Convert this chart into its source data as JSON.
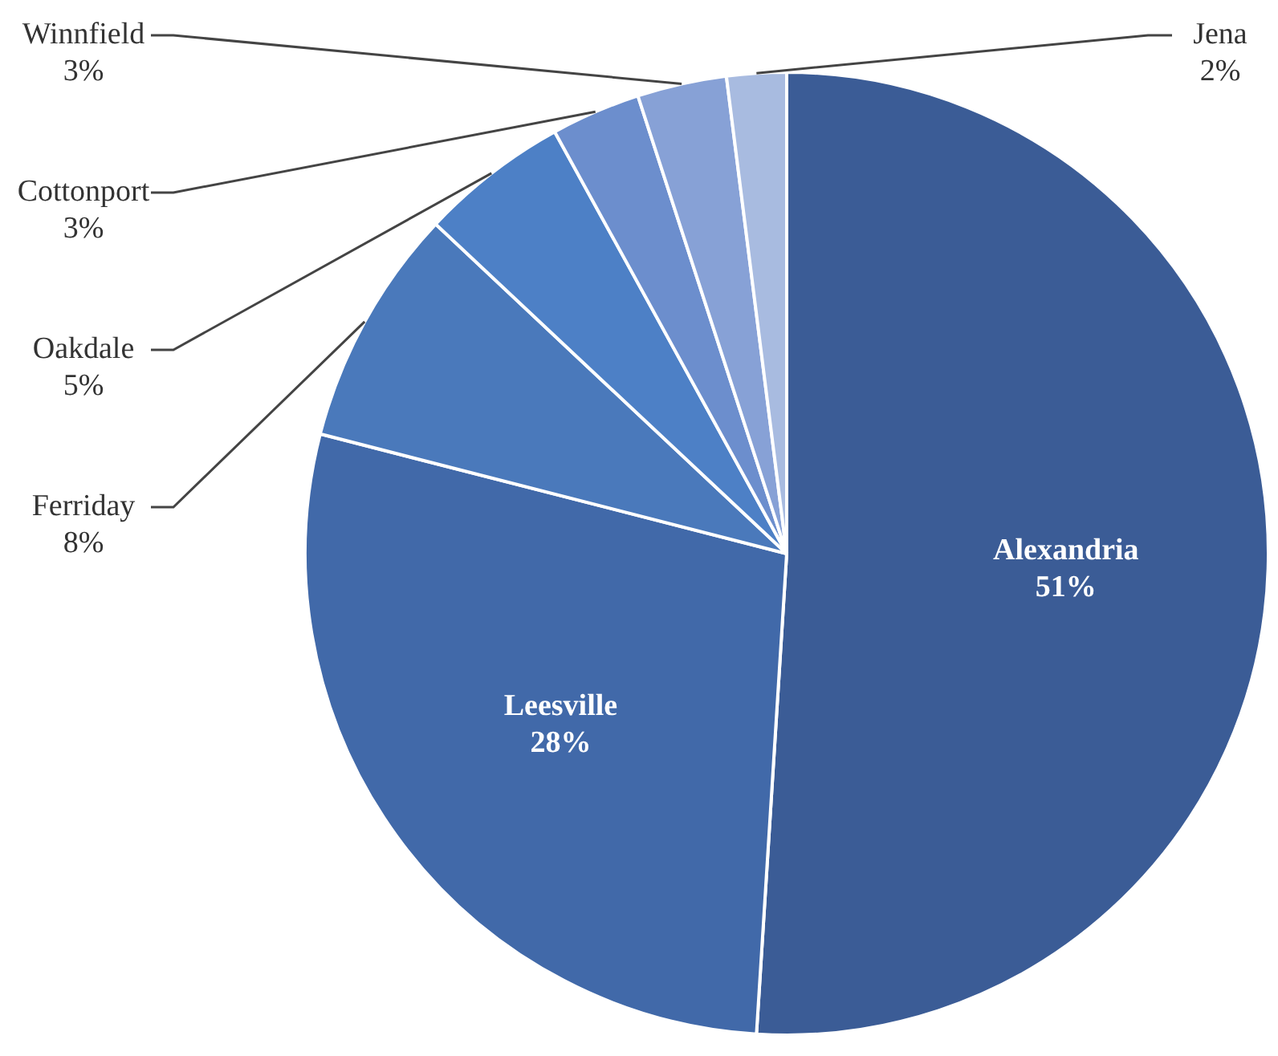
{
  "chart_data": {
    "type": "pie",
    "categories": [
      "Alexandria",
      "Leesville",
      "Ferriday",
      "Oakdale",
      "Cottonport",
      "Winnfield",
      "Jena"
    ],
    "values": [
      51,
      28,
      8,
      5,
      3,
      3,
      2
    ],
    "value_labels": [
      "51%",
      "28%",
      "8%",
      "5%",
      "3%",
      "3%",
      "2%"
    ],
    "colors": [
      "#3b5c96",
      "#4169a9",
      "#4a79bb",
      "#4d80c6",
      "#6c8ecd",
      "#87a1d6",
      "#a8bbe0"
    ]
  }
}
